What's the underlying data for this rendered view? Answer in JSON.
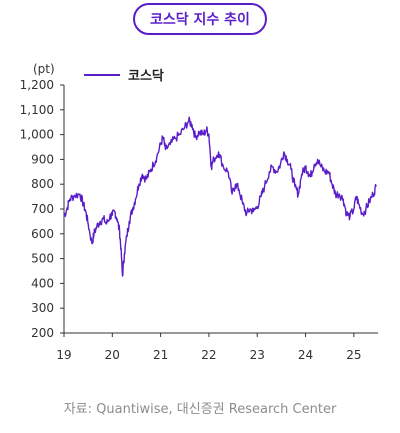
{
  "title": "코스닥 지수 추이",
  "source": "자료: Quantiwise, 대신증권 Research Center",
  "colors": {
    "accent": "#5a1ec8",
    "line": "#5a1ec8",
    "axis": "#333333",
    "text": "#333333",
    "muted": "#8c8c8c"
  },
  "chart_data": {
    "type": "line",
    "title": "코스닥 지수 추이",
    "unit_label": "(pt)",
    "xlabel": "",
    "ylabel": "",
    "ylim": [
      200,
      1200
    ],
    "yticks": [
      200,
      300,
      400,
      500,
      600,
      700,
      800,
      900,
      1000,
      1100,
      1200
    ],
    "ytick_labels": [
      "200",
      "300",
      "400",
      "500",
      "600",
      "700",
      "800",
      "900",
      "1,000",
      "1,100",
      "1,200"
    ],
    "xlim": [
      2019.0,
      2025.5
    ],
    "xticks": [
      2019,
      2020,
      2021,
      2022,
      2023,
      2024,
      2025
    ],
    "xtick_labels": [
      "19",
      "20",
      "21",
      "22",
      "23",
      "24",
      "25"
    ],
    "grid": false,
    "legend": "top-left",
    "series": [
      {
        "name": "코스닥",
        "points": [
          [
            2019.0,
            670
          ],
          [
            2019.06,
            700
          ],
          [
            2019.12,
            740
          ],
          [
            2019.22,
            755
          ],
          [
            2019.33,
            760
          ],
          [
            2019.4,
            720
          ],
          [
            2019.45,
            690
          ],
          [
            2019.5,
            640
          ],
          [
            2019.58,
            560
          ],
          [
            2019.62,
            600
          ],
          [
            2019.68,
            630
          ],
          [
            2019.75,
            650
          ],
          [
            2019.82,
            660
          ],
          [
            2019.88,
            640
          ],
          [
            2019.95,
            670
          ],
          [
            2020.0,
            675
          ],
          [
            2020.05,
            690
          ],
          [
            2020.1,
            660
          ],
          [
            2020.15,
            610
          ],
          [
            2020.18,
            540
          ],
          [
            2020.21,
            430
          ],
          [
            2020.25,
            520
          ],
          [
            2020.3,
            590
          ],
          [
            2020.35,
            650
          ],
          [
            2020.42,
            700
          ],
          [
            2020.48,
            740
          ],
          [
            2020.55,
            800
          ],
          [
            2020.62,
            840
          ],
          [
            2020.7,
            820
          ],
          [
            2020.78,
            850
          ],
          [
            2020.85,
            880
          ],
          [
            2020.92,
            910
          ],
          [
            2021.0,
            960
          ],
          [
            2021.05,
            990
          ],
          [
            2021.1,
            940
          ],
          [
            2021.2,
            960
          ],
          [
            2021.3,
            985
          ],
          [
            2021.4,
            1000
          ],
          [
            2021.5,
            1030
          ],
          [
            2021.58,
            1055
          ],
          [
            2021.65,
            1040
          ],
          [
            2021.72,
            990
          ],
          [
            2021.8,
            1010
          ],
          [
            2021.88,
            1000
          ],
          [
            2021.95,
            1020
          ],
          [
            2022.0,
            1000
          ],
          [
            2022.05,
            870
          ],
          [
            2022.1,
            900
          ],
          [
            2022.2,
            930
          ],
          [
            2022.3,
            870
          ],
          [
            2022.4,
            850
          ],
          [
            2022.48,
            760
          ],
          [
            2022.55,
            800
          ],
          [
            2022.62,
            780
          ],
          [
            2022.7,
            720
          ],
          [
            2022.78,
            680
          ],
          [
            2022.85,
            700
          ],
          [
            2022.92,
            690
          ],
          [
            2023.0,
            710
          ],
          [
            2023.08,
            750
          ],
          [
            2023.15,
            790
          ],
          [
            2023.25,
            850
          ],
          [
            2023.32,
            870
          ],
          [
            2023.4,
            850
          ],
          [
            2023.48,
            880
          ],
          [
            2023.55,
            930
          ],
          [
            2023.62,
            900
          ],
          [
            2023.7,
            860
          ],
          [
            2023.78,
            790
          ],
          [
            2023.85,
            760
          ],
          [
            2023.92,
            840
          ],
          [
            2024.0,
            870
          ],
          [
            2024.05,
            850
          ],
          [
            2024.1,
            830
          ],
          [
            2024.18,
            880
          ],
          [
            2024.25,
            900
          ],
          [
            2024.32,
            870
          ],
          [
            2024.4,
            850
          ],
          [
            2024.48,
            850
          ],
          [
            2024.55,
            800
          ],
          [
            2024.62,
            760
          ],
          [
            2024.7,
            760
          ],
          [
            2024.78,
            740
          ],
          [
            2024.85,
            680
          ],
          [
            2024.92,
            670
          ],
          [
            2025.0,
            700
          ],
          [
            2025.05,
            750
          ],
          [
            2025.1,
            720
          ],
          [
            2025.18,
            680
          ],
          [
            2025.25,
            700
          ],
          [
            2025.32,
            730
          ],
          [
            2025.4,
            760
          ],
          [
            2025.46,
            790
          ]
        ]
      }
    ]
  }
}
